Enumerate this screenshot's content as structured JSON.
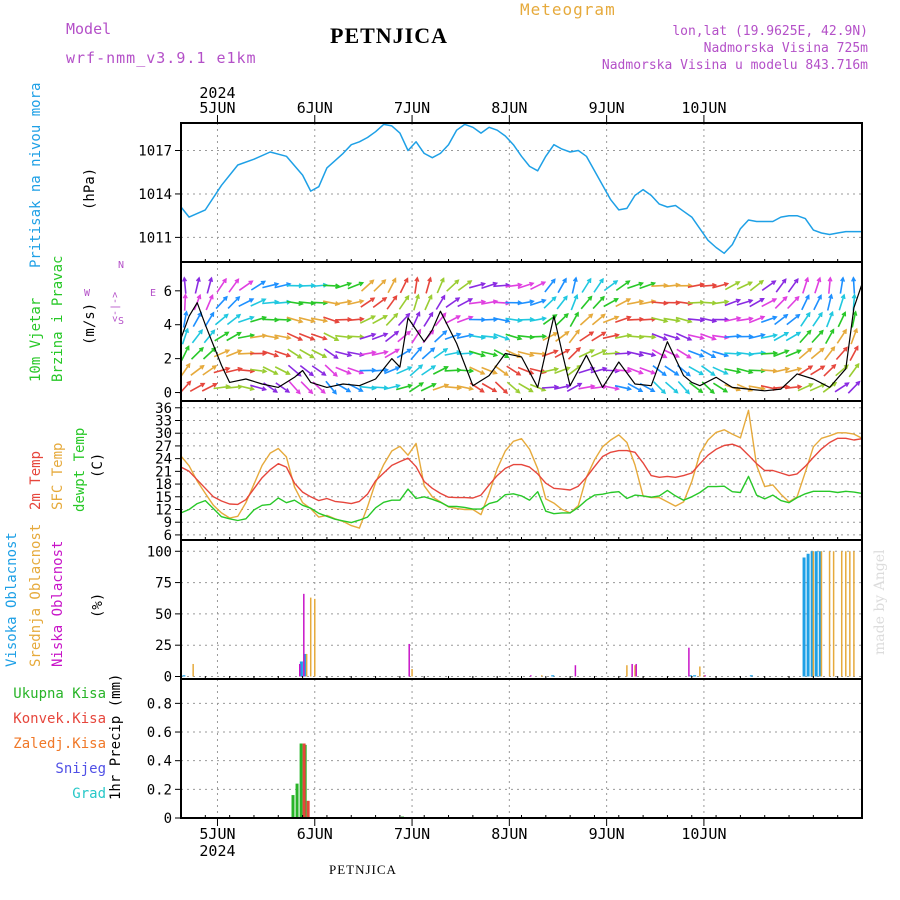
{
  "header": {
    "model_label": "Model",
    "model_name": "wrf-nmm_v3.9.1 e1km",
    "title": "PETNJICA",
    "meteogram": "Meteogram",
    "lonlat": "lon,lat (19.9625E, 42.9N)",
    "altitude": "Nadmorska Visina 725m",
    "model_altitude": "Nadmorska Visina u modelu 843.716m",
    "year_top": "2024",
    "footer": "PETNJICA",
    "watermark": "made by Angel",
    "date_labels": [
      "5JUN",
      "6JUN",
      "7JUN",
      "8JUN",
      "9JUN",
      "10JUN"
    ],
    "year_bottom": "2024"
  },
  "colors": {
    "pressure": "#1ea0e6",
    "wind_speed": "#000000",
    "t2m": "#e6463c",
    "tsfc": "#e6aa3c",
    "dewpoint": "#28c828",
    "cloud_high": "#1ea0e6",
    "cloud_mid": "#e6aa3c",
    "cloud_low": "#c814c8",
    "precip_total": "#28b428",
    "precip_conv": "#e6463c",
    "precip_frozen": "#f07828",
    "precip_snow": "#5050e6",
    "precip_hail": "#28c8c8",
    "model": "#b450c8"
  },
  "panel_labels": {
    "pressure": [
      "Pritisak na nivou mora",
      "(hPa)"
    ],
    "wind": [
      "10m Vjetar",
      "Brzina i Pravac",
      "(m/s)"
    ],
    "wind_compass": [
      "N",
      "<-|->",
      "E",
      "W",
      "S"
    ],
    "temp": [
      "2m Temp",
      "SFC Temp",
      "dewpt Temp",
      "(C)"
    ],
    "cloud": [
      "Visoka Oblacnost",
      "Srednja Oblacnost",
      "Niska Oblacnost",
      "(%)"
    ],
    "precip_unit": "1hr Precip (mm)",
    "precip_legend": [
      "Ukupna Kisa",
      "Konvek.Kisa",
      "Zaledj.Kisa",
      "Snijeg",
      "Grad"
    ]
  },
  "chart_data": [
    {
      "type": "line",
      "title": "Pritisak na nivou mora",
      "ylabel": "(hPa)",
      "x_unit": "hours from 2024-06-04 12:00",
      "ylim": [
        1009.3,
        1018.9
      ],
      "yticks": [
        1011,
        1014,
        1017
      ],
      "series": [
        {
          "name": "Pritisak na nivou mora",
          "x": [
            0,
            2,
            6,
            10,
            14,
            18,
            22,
            26,
            30,
            32,
            34,
            36,
            40,
            42,
            44,
            46,
            48,
            50,
            52,
            54,
            56,
            58,
            60,
            62,
            64,
            66,
            68,
            70,
            72,
            74,
            76,
            78,
            80,
            82,
            84,
            86,
            88,
            90,
            92,
            94,
            96,
            98,
            100,
            102,
            104,
            106,
            108,
            110,
            112,
            114,
            116,
            118,
            120,
            122,
            124,
            126,
            128,
            130,
            132,
            134,
            136,
            138,
            140,
            142,
            144,
            146,
            148,
            150,
            152,
            154,
            156,
            158,
            160,
            162,
            164,
            166,
            168
          ],
          "y": [
            1013.1,
            1012.4,
            1012.9,
            1014.6,
            1016.0,
            1016.4,
            1016.9,
            1016.6,
            1015.3,
            1014.2,
            1014.5,
            1015.8,
            1016.8,
            1017.4,
            1017.6,
            1017.9,
            1018.3,
            1018.8,
            1018.7,
            1018.2,
            1017.0,
            1017.6,
            1016.8,
            1016.5,
            1016.8,
            1017.4,
            1018.4,
            1018.8,
            1018.6,
            1018.2,
            1018.6,
            1018.4,
            1018.0,
            1017.4,
            1016.6,
            1015.9,
            1015.6,
            1016.6,
            1017.4,
            1017.1,
            1016.9,
            1017.0,
            1016.6,
            1015.6,
            1014.6,
            1013.6,
            1012.9,
            1013.0,
            1013.9,
            1014.3,
            1013.9,
            1013.3,
            1013.1,
            1013.2,
            1012.8,
            1012.4,
            1011.6,
            1010.8,
            1010.3,
            1009.9,
            1010.5,
            1011.6,
            1012.2,
            1012.1,
            1012.1,
            1012.1,
            1012.4,
            1012.5,
            1012.5,
            1012.3,
            1011.5,
            1011.3,
            1011.2,
            1011.3,
            1011.4,
            1011.4,
            1011.4
          ]
        }
      ]
    },
    {
      "type": "line",
      "title": "10m Vjetar Brzina i Pravac",
      "ylabel": "(m/s)",
      "x_unit": "hours from 2024-06-04 12:00",
      "ylim": [
        -0.5,
        7.7
      ],
      "yticks": [
        0,
        2,
        4,
        6
      ],
      "series": [
        {
          "name": "10m Vjetar",
          "x": [
            0,
            2,
            4,
            6,
            8,
            10,
            12,
            16,
            20,
            24,
            28,
            30,
            32,
            36,
            40,
            44,
            48,
            50,
            52,
            54,
            56,
            60,
            62,
            64,
            68,
            72,
            76,
            80,
            84,
            88,
            92,
            94,
            96,
            100,
            104,
            108,
            112,
            116,
            120,
            124,
            126,
            128,
            132,
            136,
            140,
            144,
            148,
            152,
            156,
            160,
            164,
            166,
            168
          ],
          "y": [
            3.2,
            4.5,
            5.3,
            4.0,
            2.8,
            1.6,
            0.6,
            0.8,
            0.5,
            0.3,
            0.9,
            1.3,
            0.6,
            0.3,
            0.5,
            0.4,
            0.8,
            1.4,
            2.0,
            1.5,
            4.4,
            3.0,
            3.7,
            4.8,
            2.9,
            0.4,
            1.0,
            2.3,
            2.1,
            0.3,
            4.5,
            2.4,
            0.4,
            2.2,
            0.3,
            1.8,
            0.5,
            0.4,
            3.0,
            1.0,
            0.6,
            0.4,
            0.9,
            0.3,
            0.2,
            0.1,
            0.2,
            1.1,
            0.8,
            0.3,
            1.4,
            5.0,
            6.4
          ]
        },
        {
          "name": "direction_deg",
          "x": [
            0,
            12,
            24,
            36,
            48,
            60,
            72,
            84,
            96,
            108,
            120,
            132,
            144,
            156,
            168
          ],
          "y": [
            200,
            240,
            280,
            300,
            250,
            210,
            270,
            290,
            220,
            260,
            290,
            280,
            260,
            220,
            200
          ]
        }
      ]
    },
    {
      "type": "line",
      "title": "2m Temp / SFC Temp / dewpt Temp",
      "ylabel": "(C)",
      "x_unit": "hours from 2024-06-04 12:00",
      "ylim": [
        4.8,
        37.6
      ],
      "yticks": [
        6,
        9,
        12,
        15,
        18,
        21,
        24,
        27,
        30,
        33,
        36
      ],
      "series": [
        {
          "name": "2m Temp",
          "x": [
            0,
            2,
            4,
            6,
            8,
            10,
            12,
            14,
            16,
            18,
            20,
            22,
            24,
            26,
            28,
            30,
            32,
            34,
            36,
            38,
            40,
            42,
            44,
            46,
            48,
            50,
            52,
            54,
            56,
            58,
            60,
            62,
            64,
            66,
            68,
            70,
            72,
            74,
            76,
            78,
            80,
            82,
            84,
            86,
            88,
            90,
            92,
            94,
            96,
            98,
            100,
            102,
            104,
            106,
            108,
            110,
            112,
            114,
            116,
            118,
            120,
            122,
            124,
            126,
            128,
            130,
            132,
            134,
            136,
            138,
            140,
            142,
            144,
            146,
            148,
            150,
            152,
            154,
            156,
            158,
            160,
            162,
            164,
            166,
            168
          ],
          "y": [
            22.0,
            21.0,
            19.0,
            17.0,
            15.0,
            14.0,
            13.3,
            13.2,
            14.3,
            16.9,
            19.5,
            21.4,
            22.8,
            22.0,
            18.2,
            16.1,
            15.0,
            14.1,
            14.6,
            13.9,
            13.7,
            13.4,
            13.9,
            15.6,
            18.8,
            20.6,
            22.4,
            23.3,
            24.1,
            22.1,
            18.6,
            17.0,
            15.8,
            14.9,
            14.8,
            14.8,
            14.7,
            15.4,
            17.8,
            20.0,
            21.7,
            22.6,
            22.6,
            22.0,
            20.4,
            18.2,
            17.0,
            16.8,
            16.6,
            17.5,
            19.6,
            22.1,
            24.5,
            25.5,
            25.9,
            25.9,
            25.5,
            23.0,
            20.0,
            19.6,
            19.8,
            19.6,
            20.0,
            20.6,
            22.8,
            24.8,
            26.2,
            27.1,
            27.4,
            26.7,
            24.8,
            22.8,
            21.2,
            21.2,
            20.6,
            20.0,
            20.4,
            22.2,
            24.3,
            26.3,
            27.8,
            28.8,
            28.8,
            28.4,
            28.7
          ]
        },
        {
          "name": "SFC Temp",
          "x": [
            0,
            2,
            4,
            6,
            8,
            10,
            12,
            14,
            16,
            18,
            20,
            22,
            24,
            26,
            28,
            30,
            32,
            34,
            36,
            38,
            40,
            42,
            44,
            46,
            48,
            50,
            52,
            54,
            56,
            58,
            60,
            62,
            64,
            66,
            68,
            70,
            72,
            74,
            76,
            78,
            80,
            82,
            84,
            86,
            88,
            90,
            92,
            94,
            96,
            98,
            100,
            102,
            104,
            106,
            108,
            110,
            112,
            114,
            116,
            118,
            120,
            122,
            124,
            126,
            128,
            130,
            132,
            134,
            136,
            138,
            140,
            142,
            144,
            146,
            148,
            150,
            152,
            154,
            156,
            158,
            160,
            162,
            164,
            166,
            168
          ],
          "y": [
            24.6,
            22.3,
            18.7,
            15.8,
            13.0,
            11.2,
            10.0,
            10.4,
            13.6,
            18.0,
            22.4,
            25.3,
            26.4,
            24.4,
            17.3,
            13.6,
            12.2,
            10.2,
            10.6,
            9.8,
            9.2,
            8.2,
            7.6,
            12.6,
            18.4,
            22.6,
            25.8,
            26.9,
            24.8,
            27.6,
            17.6,
            15.0,
            13.8,
            12.6,
            12.2,
            12.0,
            12.0,
            10.8,
            15.8,
            21.6,
            25.8,
            28.1,
            28.7,
            26.2,
            21.6,
            14.5,
            13.5,
            12.0,
            11.2,
            12.9,
            19.6,
            23.7,
            26.8,
            28.4,
            29.6,
            27.8,
            22.5,
            15.2,
            14.8,
            14.8,
            13.8,
            12.8,
            13.8,
            18.6,
            25.2,
            28.4,
            30.2,
            30.8,
            29.8,
            28.9,
            35.4,
            22.4,
            17.4,
            17.8,
            15.6,
            13.8,
            15.0,
            20.8,
            26.8,
            28.8,
            29.4,
            30.1,
            30.1,
            29.8,
            28.8
          ]
        },
        {
          "name": "dewpt Temp",
          "x": [
            0,
            2,
            4,
            6,
            8,
            10,
            12,
            14,
            16,
            18,
            20,
            22,
            24,
            26,
            28,
            30,
            32,
            34,
            36,
            38,
            40,
            42,
            44,
            46,
            48,
            50,
            52,
            54,
            56,
            58,
            60,
            62,
            64,
            66,
            68,
            70,
            72,
            74,
            76,
            78,
            80,
            82,
            84,
            86,
            88,
            90,
            92,
            94,
            96,
            98,
            100,
            102,
            104,
            106,
            108,
            110,
            112,
            114,
            116,
            118,
            120,
            122,
            124,
            126,
            128,
            130,
            132,
            134,
            136,
            138,
            140,
            142,
            144,
            146,
            148,
            150,
            152,
            154,
            156,
            158,
            160,
            162,
            164,
            166,
            168
          ],
          "y": [
            11.2,
            12.0,
            13.4,
            14.1,
            12.2,
            10.3,
            9.8,
            9.4,
            9.8,
            11.9,
            13.0,
            13.2,
            14.7,
            13.6,
            14.2,
            13.0,
            12.3,
            11.1,
            10.4,
            9.7,
            9.3,
            8.9,
            9.5,
            10.2,
            12.4,
            13.7,
            14.2,
            14.2,
            16.8,
            14.6,
            15.0,
            14.4,
            13.7,
            12.7,
            12.7,
            12.5,
            12.1,
            12.1,
            13.4,
            13.9,
            15.5,
            15.7,
            15.2,
            14.2,
            16.2,
            11.6,
            11.0,
            11.2,
            11.2,
            12.5,
            14.2,
            15.4,
            15.6,
            16.0,
            16.2,
            14.6,
            15.4,
            15.2,
            14.9,
            15.2,
            16.5,
            15.2,
            14.2,
            15.0,
            16.0,
            17.4,
            17.4,
            17.5,
            16.2,
            16.0,
            19.8,
            15.4,
            14.5,
            15.4,
            14.1,
            13.6,
            14.8,
            15.7,
            16.3,
            16.3,
            16.3,
            16.0,
            16.3,
            16.1,
            15.8
          ]
        }
      ]
    },
    {
      "type": "bar",
      "title": "Visoka Oblacnost / Srednja Oblacnost / Niska Oblacnost",
      "ylabel": "(%)",
      "x_unit": "hours from 2024-06-04 12:00",
      "ylim": [
        -2,
        109
      ],
      "yticks": [
        0,
        25,
        50,
        75,
        100
      ],
      "series": [
        {
          "name": "Visoka Oblacnost",
          "x": [
            1,
            30,
            31,
            92,
            126,
            127,
            141,
            154,
            155,
            156,
            157,
            158
          ],
          "y": [
            1,
            12,
            18,
            1,
            1,
            1,
            1,
            95,
            98,
            100,
            100,
            100
          ]
        },
        {
          "name": "Srednja Oblacnost",
          "x": [
            3,
            31,
            32,
            33,
            57,
            89,
            110,
            112,
            128,
            129,
            156,
            158,
            160,
            161,
            163,
            164,
            165,
            166
          ],
          "y": [
            10,
            18,
            63,
            62,
            6,
            1,
            9,
            9,
            8,
            1,
            100,
            100,
            100,
            100,
            100,
            100,
            100,
            100
          ]
        },
        {
          "name": "Niska Oblacnost",
          "x": [
            29,
            30,
            56,
            86,
            97,
            111,
            112,
            125,
            129
          ],
          "y": [
            10,
            66,
            26,
            1,
            9,
            10,
            10,
            23,
            1
          ]
        }
      ]
    },
    {
      "type": "bar",
      "title": "",
      "ylabel": "1hr Precip (mm)",
      "x_unit": "hours from 2024-06-04 12:00",
      "ylim": [
        0,
        0.97
      ],
      "yticks": [
        0,
        0.2,
        0.4,
        0.6,
        0.8
      ],
      "series": [
        {
          "name": "Ukupna Kisa",
          "x": [
            28,
            29,
            30,
            31,
            55
          ],
          "y": [
            0.16,
            0.24,
            0.52,
            0.51,
            0.01
          ]
        },
        {
          "name": "Konvek.Kisa",
          "x": [
            30,
            31
          ],
          "y": [
            0.52,
            0.12
          ]
        }
      ]
    }
  ]
}
